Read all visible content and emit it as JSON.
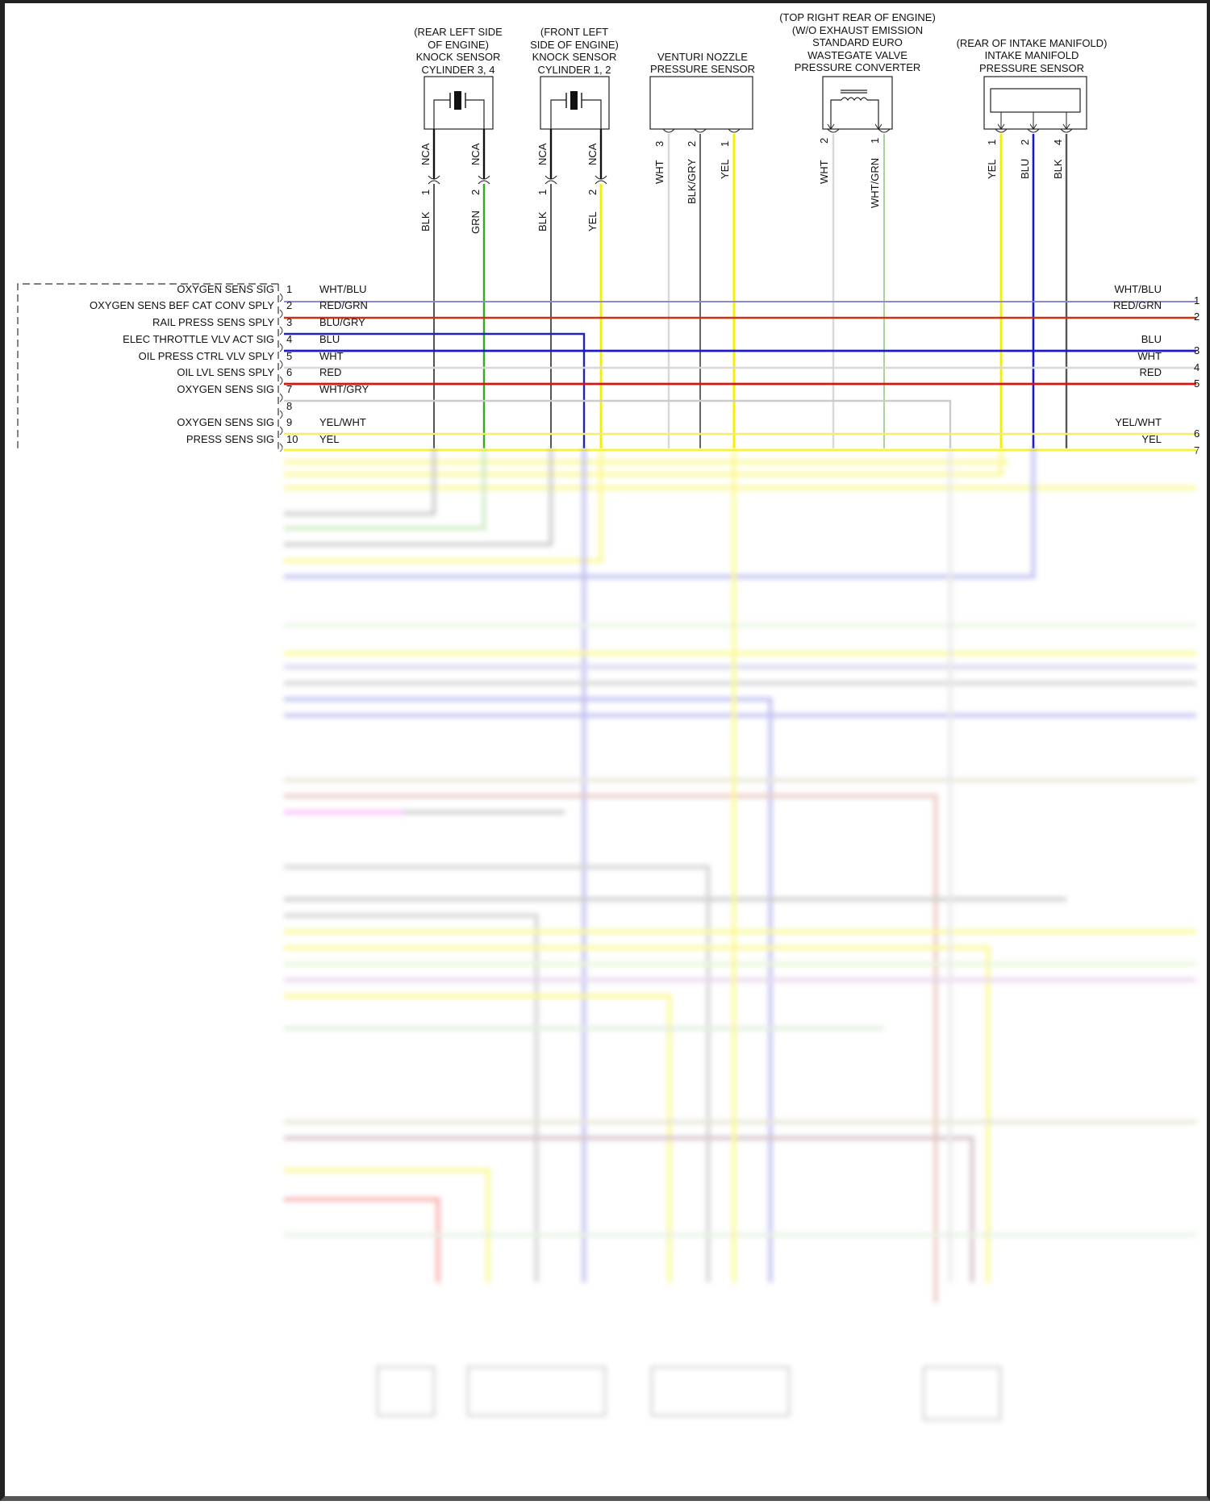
{
  "components": [
    {
      "id": "knock34",
      "location": "(REAR LEFT SIDE",
      "location2": "OF ENGINE)",
      "name1": "KNOCK SENSOR",
      "name2": "CYLINDER 3, 4",
      "pins": [
        {
          "pin": "1",
          "inline": "NCA",
          "wire": "BLK",
          "color": "#555555"
        },
        {
          "pin": "2",
          "inline": "NCA",
          "wire": "GRN",
          "color": "#33aa22"
        }
      ]
    },
    {
      "id": "knock12",
      "location": "(FRONT LEFT",
      "location2": "SIDE OF ENGINE)",
      "name1": "KNOCK SENSOR",
      "name2": "CYLINDER 1, 2",
      "pins": [
        {
          "pin": "1",
          "inline": "NCA",
          "wire": "BLK",
          "color": "#555555"
        },
        {
          "pin": "2",
          "inline": "NCA",
          "wire": "YEL",
          "color": "#f5f000"
        }
      ]
    },
    {
      "id": "venturi",
      "name1": "VENTURI NOZZLE",
      "name2": "PRESSURE SENSOR",
      "pins": [
        {
          "pin": "3",
          "wire": "WHT",
          "color": "#d8d8d8"
        },
        {
          "pin": "2",
          "wire": "BLK/GRY",
          "color": "#666666"
        },
        {
          "pin": "1",
          "wire": "YEL",
          "color": "#f5f000"
        }
      ]
    },
    {
      "id": "wastegate",
      "location": "(TOP RIGHT REAR OF ENGINE)",
      "location2": "(W/O EXHAUST EMISSION",
      "location3": "STANDARD EURO",
      "name1": "WASTEGATE VALVE",
      "name2": "PRESSURE CONVERTER",
      "pins": [
        {
          "pin": "2",
          "wire": "WHT",
          "color": "#d8d8d8"
        },
        {
          "pin": "1",
          "wire": "WHT/GRN",
          "color": "#a8d49a"
        }
      ]
    },
    {
      "id": "imap",
      "location": "(REAR OF INTAKE MANIFOLD)",
      "name1": "INTAKE MANIFOLD",
      "name2": "PRESSURE SENSOR",
      "pins": [
        {
          "pin": "1",
          "wire": "YEL",
          "color": "#f5f000"
        },
        {
          "pin": "2",
          "wire": "BLU",
          "color": "#1a1acc"
        },
        {
          "pin": "4",
          "wire": "BLK",
          "color": "#555555"
        }
      ]
    }
  ],
  "ecm_pins": [
    {
      "pin": "1",
      "func": "OXYGEN SENS SIG",
      "wire": "WHT/BLU",
      "color": "#8a8ad0",
      "right_wire": "WHT/BLU",
      "right_pin": "1"
    },
    {
      "pin": "2",
      "func": "OXYGEN SENS BEF CAT CONV SPLY",
      "wire": "RED/GRN",
      "color": "#cc3311",
      "right_wire": "RED/GRN",
      "right_pin": "2"
    },
    {
      "pin": "3",
      "func": "RAIL PRESS SENS SPLY",
      "wire": "BLU/GRY",
      "color": "#2222bb",
      "right_wire": "",
      "right_pin": ""
    },
    {
      "pin": "4",
      "func": "ELEC THROTTLE VLV ACT SIG",
      "wire": "BLU",
      "color": "#1a1acc",
      "right_wire": "BLU",
      "right_pin": "3"
    },
    {
      "pin": "5",
      "func": "OIL PRESS CTRL VLV SPLY",
      "wire": "WHT",
      "color": "#d8d8d8",
      "right_wire": "WHT",
      "right_pin": "4"
    },
    {
      "pin": "6",
      "func": "OIL LVL SENS SPLY",
      "wire": "RED",
      "color": "#dd1111",
      "right_wire": "RED",
      "right_pin": "5"
    },
    {
      "pin": "7",
      "func": "OXYGEN SENS SIG",
      "wire": "WHT/GRY",
      "color": "#cccccc",
      "right_wire": "",
      "right_pin": ""
    },
    {
      "pin": "8",
      "func": "",
      "wire": "",
      "color": "",
      "right_wire": "",
      "right_pin": ""
    },
    {
      "pin": "9",
      "func": "OXYGEN SENS SIG",
      "wire": "YEL/WHT",
      "color": "#f2ee70",
      "right_wire": "YEL/WHT",
      "right_pin": "6"
    },
    {
      "pin": "10",
      "func": "PRESS SENS SIG",
      "wire": "YEL",
      "color": "#f5f000",
      "right_wire": "YEL",
      "right_pin": "7"
    }
  ],
  "blurred_region_note": "lower portion of diagram obscured (pins 11-56, bottom components)"
}
